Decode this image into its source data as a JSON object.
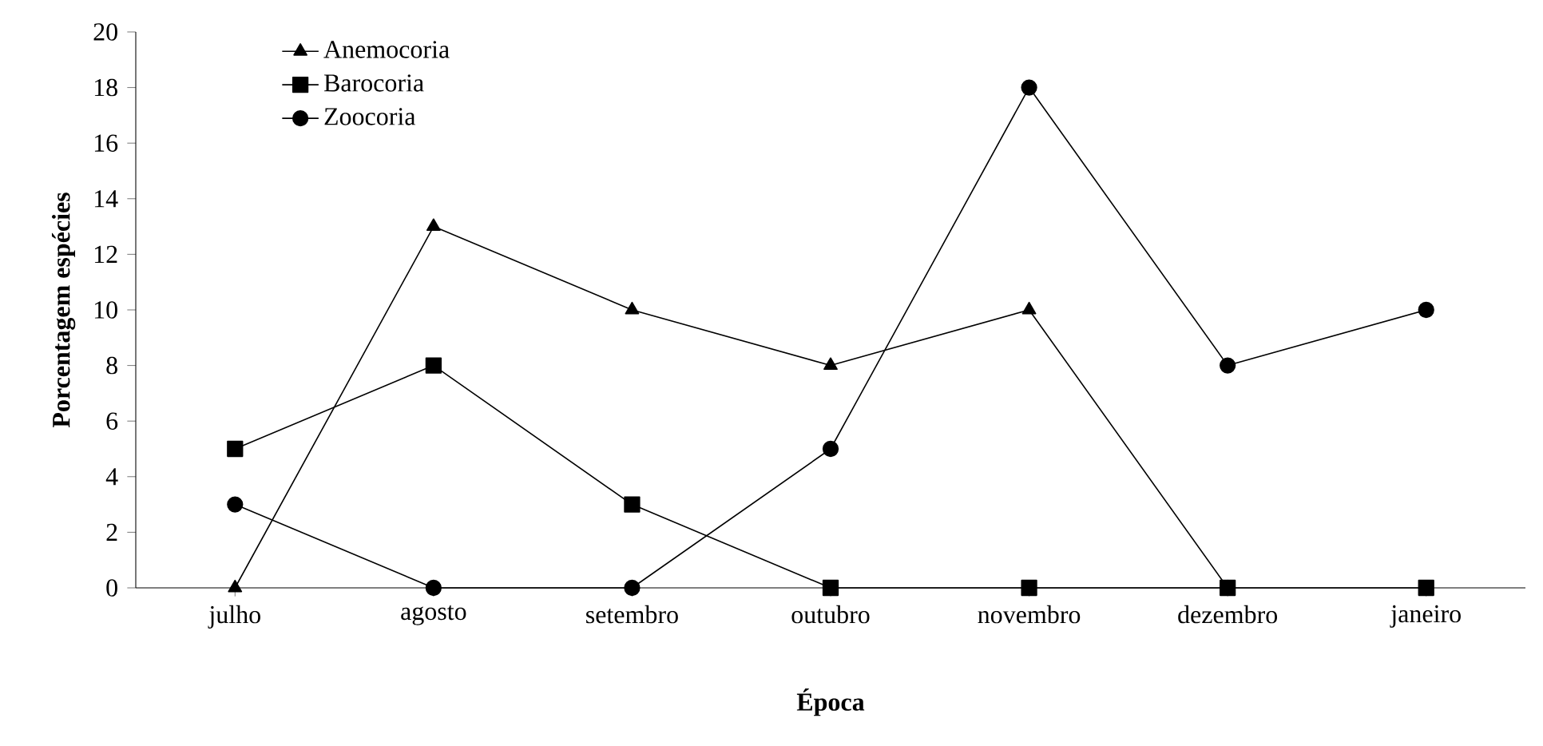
{
  "chart_data": {
    "type": "line",
    "xlabel": "Época",
    "ylabel": "Porcentagem espécies",
    "categories": [
      "julho",
      "agosto",
      "setembro",
      "outubro",
      "novembro",
      "dezembro",
      "janeiro"
    ],
    "series": [
      {
        "name": "Anemocoria",
        "color": "#000000",
        "marker": "triangle",
        "values": [
          0,
          13,
          10,
          8,
          10,
          0,
          null
        ]
      },
      {
        "name": "Barocoria",
        "color": "#000000",
        "marker": "square",
        "values": [
          5,
          8,
          3,
          0,
          0,
          0,
          0
        ]
      },
      {
        "name": "Zoocoria",
        "color": "#000000",
        "marker": "circle",
        "values": [
          3,
          0,
          0,
          5,
          18,
          8,
          10
        ]
      }
    ],
    "ylim": [
      0,
      20
    ],
    "yticks": [
      0,
      2,
      4,
      6,
      8,
      10,
      12,
      14,
      16,
      18,
      20
    ],
    "grid": false,
    "legend": "top left",
    "line_style": "solid"
  }
}
